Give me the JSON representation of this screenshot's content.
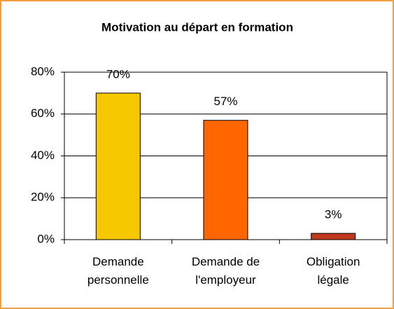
{
  "chart_data": {
    "type": "bar",
    "title": "Motivation au départ en formation",
    "categories": [
      "Demande personnelle",
      "Demande de l'employeur",
      "Obligation légale"
    ],
    "values": [
      70,
      57,
      3
    ],
    "value_labels": [
      "70%",
      "57%",
      "3%"
    ],
    "colors": [
      "#f5c800",
      "#ff6600",
      "#c0391f"
    ],
    "ylim": [
      0,
      80
    ],
    "yticks": [
      {
        "value": 0,
        "label": "0%"
      },
      {
        "value": 20,
        "label": "20%"
      },
      {
        "value": 40,
        "label": "40%"
      },
      {
        "value": 60,
        "label": "60%"
      },
      {
        "value": 80,
        "label": "80%"
      }
    ],
    "grid": true
  }
}
